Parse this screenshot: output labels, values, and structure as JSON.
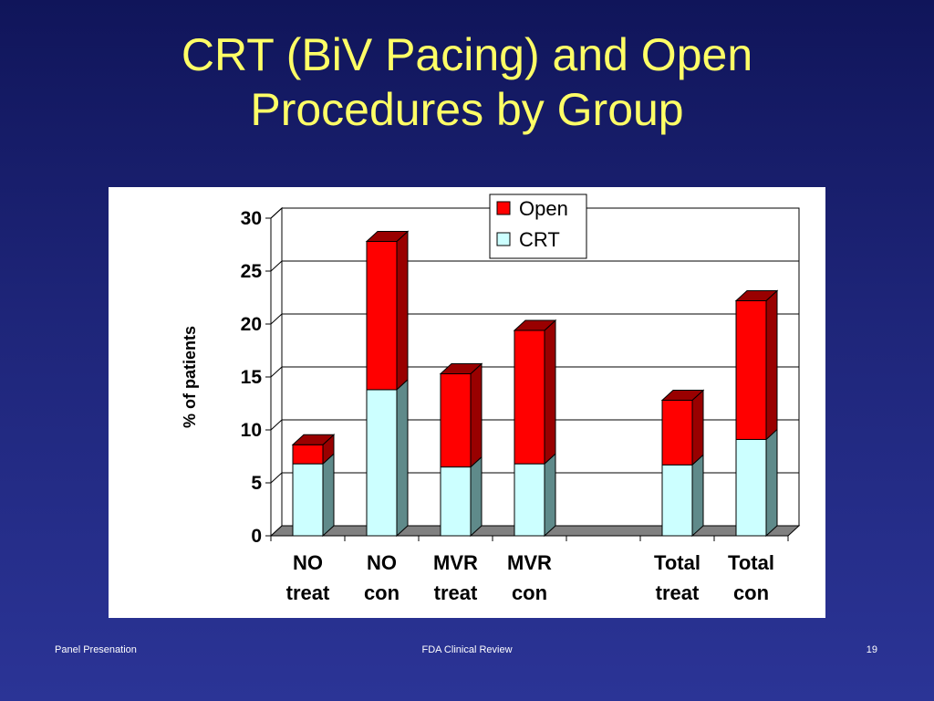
{
  "slide": {
    "title_line1": "CRT (BiV Pacing) and Open",
    "title_line2": "Procedures by Group",
    "title_color": "#ffff66",
    "background_color": "#1e2579"
  },
  "footer": {
    "left": "Panel Presenation",
    "center": "FDA Clinical Review",
    "page_number": "19"
  },
  "chart_data": {
    "type": "bar",
    "stacked": true,
    "style": "3d",
    "categories": [
      [
        "NO",
        "treat"
      ],
      [
        "NO",
        "con"
      ],
      [
        "MVR",
        "treat"
      ],
      [
        "MVR",
        "con"
      ],
      [
        "",
        ""
      ],
      [
        "Total",
        "treat"
      ],
      [
        "Total",
        "con"
      ]
    ],
    "series": [
      {
        "name": "CRT",
        "color": "#ccffff",
        "side_color": "#5f8a8a",
        "values": [
          6.8,
          13.8,
          6.5,
          6.8,
          null,
          6.7,
          9.1
        ]
      },
      {
        "name": "Open",
        "color": "#ff0000",
        "side_color": "#990000",
        "values": [
          1.8,
          14.0,
          8.8,
          12.6,
          null,
          6.1,
          13.1
        ]
      }
    ],
    "title": "",
    "xlabel": "",
    "ylabel": "% of patients",
    "ylim": [
      0,
      30
    ],
    "yticks": [
      "0",
      "5",
      "10",
      "15",
      "20",
      "25",
      "30"
    ],
    "grid": true,
    "legend": {
      "placement": "top-right",
      "entries": [
        "Open",
        "CRT"
      ]
    }
  }
}
